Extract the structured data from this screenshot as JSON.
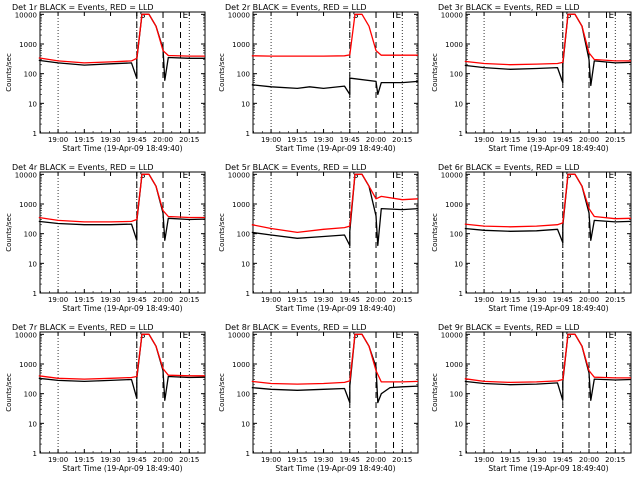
{
  "figure": {
    "legend_text": "BLACK = Events, RED = LLD",
    "series_colors": {
      "events": "#000000",
      "lld": "#ff0000"
    }
  },
  "chart_data": [
    {
      "type": "line",
      "title": "Det 1r",
      "xlabel": "Start Time (19-Apr-09 18:49:40)",
      "ylabel": "Counts/sec",
      "x_ticks": [
        "19:00",
        "19:15",
        "19:30",
        "19:45",
        "20:00",
        "20:15"
      ],
      "y_ticks": [
        "1",
        "10",
        "100",
        "1000",
        "10000"
      ],
      "y_scale": "log",
      "ylim": [
        1,
        12000
      ],
      "annotations": [
        "S",
        "E"
      ],
      "markers": {
        "dotted": [
          "19:00",
          "19:45",
          "20:15"
        ],
        "dashed": [
          "19:45",
          "20:00",
          "20:10"
        ]
      },
      "series": [
        {
          "name": "Events",
          "color": "#000000",
          "x": [
            "18:49",
            "19:00",
            "19:15",
            "19:30",
            "19:42",
            "19:45",
            "19:45",
            "19:48",
            "19:50",
            "19:52",
            "19:56",
            "20:00",
            "20:01",
            "20:03",
            "20:15",
            "20:24"
          ],
          "values": [
            280,
            230,
            195,
            215,
            230,
            70,
            300,
            10000,
            10000,
            10000,
            4000,
            700,
            60,
            350,
            330,
            330
          ]
        },
        {
          "name": "LLD",
          "color": "#ff0000",
          "x": [
            "18:49",
            "19:00",
            "19:15",
            "19:30",
            "19:42",
            "19:45",
            "19:48",
            "19:50",
            "19:52",
            "19:56",
            "20:00",
            "20:03",
            "20:15",
            "20:24"
          ],
          "values": [
            340,
            270,
            230,
            250,
            270,
            330,
            10000,
            10000,
            10000,
            4000,
            600,
            410,
            390,
            390
          ]
        }
      ]
    },
    {
      "type": "line",
      "title": "Det 2r",
      "xlabel": "Start Time (19-Apr-09 18:49:40)",
      "ylabel": "Counts/sec",
      "x_ticks": [
        "19:00",
        "19:15",
        "19:30",
        "19:45",
        "20:00",
        "20:15"
      ],
      "y_ticks": [
        "1",
        "10",
        "100",
        "1000",
        "10000"
      ],
      "y_scale": "log",
      "ylim": [
        1,
        12000
      ],
      "annotations": [
        "S",
        "E"
      ],
      "markers": {
        "dotted": [
          "19:00",
          "19:45",
          "20:15"
        ],
        "dashed": [
          "19:45",
          "20:00",
          "20:10"
        ]
      },
      "series": [
        {
          "name": "Events",
          "color": "#000000",
          "x": [
            "18:49",
            "19:00",
            "19:15",
            "19:22",
            "19:30",
            "19:42",
            "19:45",
            "19:45",
            "19:46",
            "20:00",
            "20:01",
            "20:03",
            "20:15",
            "20:24"
          ],
          "values": [
            42,
            36,
            32,
            36,
            32,
            38,
            20,
            70,
            70,
            55,
            20,
            50,
            50,
            55
          ]
        },
        {
          "name": "LLD",
          "color": "#ff0000",
          "x": [
            "18:49",
            "19:00",
            "19:15",
            "19:30",
            "19:42",
            "19:45",
            "19:48",
            "19:50",
            "19:52",
            "19:56",
            "20:00",
            "20:03",
            "20:15",
            "20:24"
          ],
          "values": [
            400,
            390,
            390,
            390,
            400,
            430,
            10000,
            10000,
            10000,
            4000,
            600,
            420,
            420,
            420
          ]
        }
      ]
    },
    {
      "type": "line",
      "title": "Det 3r",
      "xlabel": "Start Time (19-Apr-09 18:49:40)",
      "ylabel": "Counts/sec",
      "x_ticks": [
        "19:00",
        "19:15",
        "19:30",
        "19:45",
        "20:00",
        "20:15"
      ],
      "y_ticks": [
        "1",
        "10",
        "100",
        "1000",
        "10000"
      ],
      "y_scale": "log",
      "ylim": [
        1,
        12000
      ],
      "annotations": [
        "S",
        "E"
      ],
      "markers": {
        "dotted": [
          "19:00",
          "19:45",
          "20:15"
        ],
        "dashed": [
          "19:45",
          "20:00",
          "20:10"
        ]
      },
      "series": [
        {
          "name": "Events",
          "color": "#000000",
          "x": [
            "18:49",
            "19:00",
            "19:15",
            "19:30",
            "19:42",
            "19:45",
            "19:45",
            "19:48",
            "19:50",
            "19:52",
            "19:56",
            "20:00",
            "20:01",
            "20:03",
            "20:15",
            "20:24"
          ],
          "values": [
            190,
            160,
            140,
            150,
            160,
            50,
            200,
            10000,
            10000,
            10000,
            4000,
            300,
            40,
            270,
            230,
            240
          ]
        },
        {
          "name": "LLD",
          "color": "#ff0000",
          "x": [
            "18:49",
            "19:00",
            "19:15",
            "19:30",
            "19:42",
            "19:45",
            "19:48",
            "19:50",
            "19:52",
            "19:56",
            "20:00",
            "20:03",
            "20:15",
            "20:24"
          ],
          "values": [
            260,
            220,
            200,
            210,
            220,
            240,
            10000,
            10000,
            10000,
            4000,
            500,
            300,
            270,
            270
          ]
        }
      ]
    },
    {
      "type": "line",
      "title": "Det 4r",
      "xlabel": "Start Time (19-Apr-09 18:49:40)",
      "ylabel": "Counts/sec",
      "x_ticks": [
        "19:00",
        "19:15",
        "19:30",
        "19:45",
        "20:00",
        "20:15"
      ],
      "y_ticks": [
        "1",
        "10",
        "100",
        "1000",
        "10000"
      ],
      "y_scale": "log",
      "ylim": [
        1,
        12000
      ],
      "annotations": [
        "S",
        "E"
      ],
      "markers": {
        "dotted": [
          "19:00",
          "19:45",
          "20:15"
        ],
        "dashed": [
          "19:45",
          "20:00",
          "20:10"
        ]
      },
      "series": [
        {
          "name": "Events",
          "color": "#000000",
          "x": [
            "18:49",
            "19:00",
            "19:15",
            "19:30",
            "19:42",
            "19:45",
            "19:45",
            "19:48",
            "19:50",
            "19:52",
            "19:56",
            "20:00",
            "20:01",
            "20:03",
            "20:15",
            "20:24"
          ],
          "values": [
            260,
            220,
            200,
            200,
            210,
            60,
            260,
            10000,
            10000,
            10000,
            4000,
            500,
            60,
            330,
            300,
            310
          ]
        },
        {
          "name": "LLD",
          "color": "#ff0000",
          "x": [
            "18:49",
            "19:00",
            "19:15",
            "19:30",
            "19:42",
            "19:45",
            "19:48",
            "19:50",
            "19:52",
            "19:56",
            "20:00",
            "20:03",
            "20:15",
            "20:24"
          ],
          "values": [
            350,
            280,
            250,
            250,
            260,
            300,
            10000,
            10000,
            10000,
            4000,
            600,
            380,
            350,
            350
          ]
        }
      ]
    },
    {
      "type": "line",
      "title": "Det 5r",
      "xlabel": "Start Time (19-Apr-09 18:49:40)",
      "ylabel": "Counts/sec",
      "x_ticks": [
        "19:00",
        "19:15",
        "19:30",
        "19:45",
        "20:00",
        "20:15"
      ],
      "y_ticks": [
        "1",
        "10",
        "100",
        "1000",
        "10000"
      ],
      "y_scale": "log",
      "ylim": [
        1,
        12000
      ],
      "annotations": [
        "S",
        "E"
      ],
      "markers": {
        "dotted": [
          "19:00",
          "19:45",
          "20:15"
        ],
        "dashed": [
          "19:45",
          "20:00",
          "20:10"
        ]
      },
      "series": [
        {
          "name": "Events",
          "color": "#000000",
          "x": [
            "18:49",
            "19:00",
            "19:15",
            "19:30",
            "19:42",
            "19:45",
            "19:45",
            "19:48",
            "19:50",
            "19:52",
            "19:56",
            "20:00",
            "20:01",
            "20:03",
            "20:15",
            "20:24"
          ],
          "values": [
            110,
            90,
            70,
            80,
            90,
            40,
            120,
            10000,
            10000,
            10000,
            4000,
            400,
            40,
            700,
            650,
            700
          ]
        },
        {
          "name": "LLD",
          "color": "#ff0000",
          "x": [
            "18:49",
            "19:00",
            "19:15",
            "19:30",
            "19:42",
            "19:45",
            "19:48",
            "19:50",
            "19:52",
            "19:56",
            "20:00",
            "20:03",
            "20:15",
            "20:24"
          ],
          "values": [
            200,
            150,
            110,
            140,
            160,
            180,
            10000,
            10000,
            10000,
            4000,
            1500,
            1800,
            1400,
            1500
          ]
        }
      ]
    },
    {
      "type": "line",
      "title": "Det 6r",
      "xlabel": "Start Time (19-Apr-09 18:49:40)",
      "ylabel": "Counts/sec",
      "x_ticks": [
        "19:00",
        "19:15",
        "19:30",
        "19:45",
        "20:00",
        "20:15"
      ],
      "y_ticks": [
        "1",
        "10",
        "100",
        "1000",
        "10000"
      ],
      "y_scale": "log",
      "ylim": [
        1,
        12000
      ],
      "annotations": [
        "S",
        "E"
      ],
      "markers": {
        "dotted": [
          "19:00",
          "19:45",
          "20:15"
        ],
        "dashed": [
          "19:45",
          "20:00",
          "20:10"
        ]
      },
      "series": [
        {
          "name": "Events",
          "color": "#000000",
          "x": [
            "18:49",
            "19:00",
            "19:15",
            "19:30",
            "19:42",
            "19:45",
            "19:45",
            "19:48",
            "19:50",
            "19:52",
            "19:56",
            "20:00",
            "20:01",
            "20:03",
            "20:15",
            "20:24"
          ],
          "values": [
            150,
            130,
            120,
            125,
            140,
            50,
            180,
            10000,
            10000,
            10000,
            4000,
            500,
            60,
            280,
            250,
            260
          ]
        },
        {
          "name": "LLD",
          "color": "#ff0000",
          "x": [
            "18:49",
            "19:00",
            "19:15",
            "19:30",
            "19:42",
            "19:45",
            "19:48",
            "19:50",
            "19:52",
            "19:56",
            "20:00",
            "20:03",
            "20:15",
            "20:24"
          ],
          "values": [
            210,
            180,
            170,
            180,
            200,
            230,
            10000,
            10000,
            10000,
            4000,
            700,
            380,
            320,
            330
          ]
        }
      ]
    },
    {
      "type": "line",
      "title": "Det 7r",
      "xlabel": "Start Time (19-Apr-09 18:49:40)",
      "ylabel": "Counts/sec",
      "x_ticks": [
        "19:00",
        "19:15",
        "19:30",
        "19:45",
        "20:00",
        "20:15"
      ],
      "y_ticks": [
        "1",
        "10",
        "100",
        "1000",
        "10000"
      ],
      "y_scale": "log",
      "ylim": [
        1,
        12000
      ],
      "annotations": [
        "S",
        "E"
      ],
      "markers": {
        "dotted": [
          "19:00",
          "19:45",
          "20:15"
        ],
        "dashed": [
          "19:45",
          "20:00",
          "20:10"
        ]
      },
      "series": [
        {
          "name": "Events",
          "color": "#000000",
          "x": [
            "18:49",
            "19:00",
            "19:15",
            "19:30",
            "19:42",
            "19:45",
            "19:45",
            "19:48",
            "19:50",
            "19:52",
            "19:56",
            "20:00",
            "20:01",
            "20:03",
            "20:15",
            "20:24"
          ],
          "values": [
            330,
            280,
            260,
            280,
            300,
            70,
            320,
            10000,
            10000,
            10000,
            4000,
            600,
            60,
            380,
            350,
            360
          ]
        },
        {
          "name": "LLD",
          "color": "#ff0000",
          "x": [
            "18:49",
            "19:00",
            "19:15",
            "19:30",
            "19:42",
            "19:45",
            "19:48",
            "19:50",
            "19:52",
            "19:56",
            "20:00",
            "20:03",
            "20:15",
            "20:24"
          ],
          "values": [
            400,
            330,
            310,
            330,
            350,
            380,
            10000,
            10000,
            10000,
            4000,
            700,
            420,
            400,
            400
          ]
        }
      ]
    },
    {
      "type": "line",
      "title": "Det 8r",
      "xlabel": "Start Time (19-Apr-09 18:49:40)",
      "ylabel": "Counts/sec",
      "x_ticks": [
        "19:00",
        "19:15",
        "19:30",
        "19:45",
        "20:00",
        "20:15"
      ],
      "y_ticks": [
        "1",
        "10",
        "100",
        "1000",
        "10000"
      ],
      "y_scale": "log",
      "ylim": [
        1,
        12000
      ],
      "annotations": [
        "S",
        "E"
      ],
      "markers": {
        "dotted": [
          "19:00",
          "19:45",
          "20:15"
        ],
        "dashed": [
          "19:45",
          "20:00",
          "20:10"
        ]
      },
      "series": [
        {
          "name": "Events",
          "color": "#000000",
          "x": [
            "18:49",
            "19:00",
            "19:15",
            "19:30",
            "19:42",
            "19:45",
            "19:45",
            "19:48",
            "19:50",
            "19:52",
            "19:56",
            "20:00",
            "20:01",
            "20:03",
            "20:08",
            "20:15",
            "20:24"
          ],
          "values": [
            160,
            140,
            130,
            140,
            150,
            50,
            180,
            10000,
            10000,
            10000,
            4000,
            800,
            50,
            100,
            160,
            170,
            180
          ]
        },
        {
          "name": "LLD",
          "color": "#ff0000",
          "x": [
            "18:49",
            "19:00",
            "19:15",
            "19:30",
            "19:42",
            "19:45",
            "19:48",
            "19:50",
            "19:52",
            "19:56",
            "20:00",
            "20:03",
            "20:15",
            "20:24"
          ],
          "values": [
            260,
            220,
            210,
            220,
            240,
            270,
            10000,
            10000,
            10000,
            4000,
            600,
            250,
            250,
            260
          ]
        }
      ]
    },
    {
      "type": "line",
      "title": "Det 9r",
      "xlabel": "Start Time (19-Apr-09 18:49:40)",
      "ylabel": "Counts/sec",
      "x_ticks": [
        "19:00",
        "19:15",
        "19:30",
        "19:45",
        "20:00",
        "20:15"
      ],
      "y_ticks": [
        "1",
        "10",
        "100",
        "1000",
        "10000"
      ],
      "y_scale": "log",
      "ylim": [
        1,
        12000
      ],
      "annotations": [
        "S",
        "E"
      ],
      "markers": {
        "dotted": [
          "19:00",
          "19:45",
          "20:15"
        ],
        "dashed": [
          "19:45",
          "20:00",
          "20:10"
        ]
      },
      "series": [
        {
          "name": "Events",
          "color": "#000000",
          "x": [
            "18:49",
            "19:00",
            "19:15",
            "19:30",
            "19:42",
            "19:45",
            "19:45",
            "19:48",
            "19:50",
            "19:52",
            "19:56",
            "20:00",
            "20:01",
            "20:03",
            "20:15",
            "20:24"
          ],
          "values": [
            260,
            220,
            200,
            210,
            230,
            60,
            250,
            10000,
            10000,
            10000,
            4000,
            500,
            60,
            310,
            290,
            300
          ]
        },
        {
          "name": "LLD",
          "color": "#ff0000",
          "x": [
            "18:49",
            "19:00",
            "19:15",
            "19:30",
            "19:42",
            "19:45",
            "19:48",
            "19:50",
            "19:52",
            "19:56",
            "20:00",
            "20:03",
            "20:15",
            "20:24"
          ],
          "values": [
            320,
            260,
            240,
            250,
            270,
            300,
            10000,
            10000,
            10000,
            4000,
            600,
            360,
            340,
            340
          ]
        }
      ]
    }
  ]
}
